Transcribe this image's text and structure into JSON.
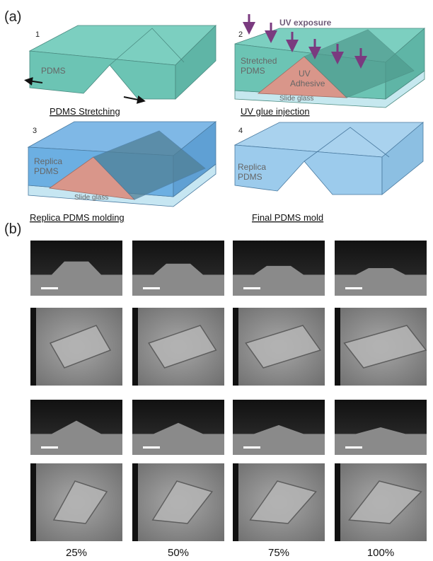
{
  "panel_a": {
    "label": "(a)",
    "steps": [
      {
        "number": "1",
        "labels": [
          "PDMS"
        ],
        "caption": "PDMS Stretching"
      },
      {
        "number": "2",
        "labels": [
          "UV exposure",
          "Stretched",
          "PDMS",
          "UV",
          "Adhesive",
          "Slide glass"
        ],
        "caption": "UV glue injection"
      },
      {
        "number": "3",
        "labels": [
          "Replica",
          "PDMS",
          "Slide glass"
        ],
        "caption": "Replica PDMS molding"
      },
      {
        "number": "4",
        "labels": [
          "Replica",
          "PDMS"
        ],
        "caption": "Final PDMS mold"
      }
    ]
  },
  "panel_b": {
    "label": "(b)",
    "columns": [
      "25%",
      "50%",
      "75%",
      "100%"
    ]
  }
}
